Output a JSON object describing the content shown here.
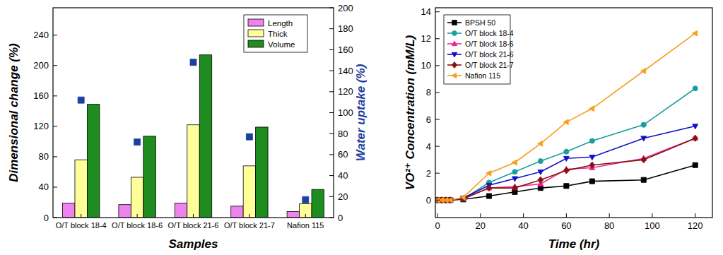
{
  "chart_data": [
    {
      "type": "bar",
      "categories": [
        "O/T block 18-4",
        "O/T block 18-6",
        "O/T block 21-6",
        "O/T block 21-7",
        "Nafion 115"
      ],
      "series": [
        {
          "name": "Length",
          "color": "#ee82ee",
          "values": [
            19,
            17,
            19,
            15,
            8
          ]
        },
        {
          "name": "Thick",
          "color": "#ffff99",
          "values": [
            76,
            53,
            122,
            68,
            18
          ]
        },
        {
          "name": "Volume",
          "color": "#1f8c1f",
          "values": [
            149,
            107,
            214,
            119,
            37
          ]
        },
        {
          "type": "scatter",
          "axis": "y2",
          "marker": "square",
          "color": "#1f3f9f",
          "values": [
            112,
            72,
            148,
            77,
            17
          ]
        }
      ],
      "x_label": "Samples",
      "y_label": "Dimensional change (%)",
      "y2_label": "Water uptake (%)",
      "ylim": [
        0,
        276
      ],
      "yticks": [
        0,
        40,
        80,
        120,
        160,
        200,
        240
      ],
      "y2lim": [
        0,
        200
      ],
      "y2ticks": [
        0,
        20,
        40,
        60,
        80,
        100,
        120,
        140,
        160,
        180,
        200
      ],
      "grid": false,
      "legend": "upper right"
    },
    {
      "type": "line",
      "x": [
        0,
        2,
        4,
        6,
        12,
        24,
        36,
        48,
        60,
        72,
        96,
        120
      ],
      "series": [
        {
          "name": "BPSH 50",
          "color": "#000000",
          "marker": "square",
          "values": [
            0,
            0,
            0,
            0,
            0.05,
            0.3,
            0.6,
            0.9,
            1.05,
            1.4,
            1.5,
            2.6
          ]
        },
        {
          "name": "O/T block 18-4",
          "color": "#1a9e9e",
          "marker": "circle",
          "values": [
            0,
            0,
            0,
            0,
            0.1,
            1.3,
            2.1,
            2.9,
            3.6,
            4.4,
            5.6,
            8.3
          ]
        },
        {
          "name": "O/T block 18-6",
          "color": "#e8258f",
          "marker": "triangle-up",
          "values": [
            0,
            0,
            0,
            0,
            0.1,
            0.9,
            1.0,
            1.2,
            2.3,
            2.4,
            3.1,
            4.6
          ]
        },
        {
          "name": "O/T block 21-6",
          "color": "#1010c8",
          "marker": "triangle-down",
          "values": [
            0,
            0,
            0,
            0,
            0.15,
            1.1,
            1.6,
            2.1,
            3.1,
            3.2,
            4.6,
            5.5
          ]
        },
        {
          "name": "O/T block 21-7",
          "color": "#8b1010",
          "marker": "diamond",
          "values": [
            0,
            0,
            0,
            0,
            0.1,
            0.9,
            0.9,
            1.5,
            2.2,
            2.6,
            3.0,
            4.6
          ]
        },
        {
          "name": "Nafion 115",
          "color": "#f5a020",
          "marker": "triangle-left",
          "values": [
            0,
            0,
            0,
            0,
            0.2,
            2.0,
            2.8,
            4.2,
            5.8,
            6.8,
            9.6,
            12.4
          ]
        }
      ],
      "x_label": "Time (hr)",
      "y_label": "VO²⁺ Concentration (mM/L)",
      "xlim": [
        -1,
        128
      ],
      "xticks": [
        0,
        20,
        40,
        60,
        80,
        100,
        120
      ],
      "ylim": [
        -1.3,
        14.3
      ],
      "yticks": [
        0,
        2,
        4,
        6,
        8,
        10,
        12,
        14
      ],
      "grid": false,
      "legend": "upper left"
    }
  ]
}
